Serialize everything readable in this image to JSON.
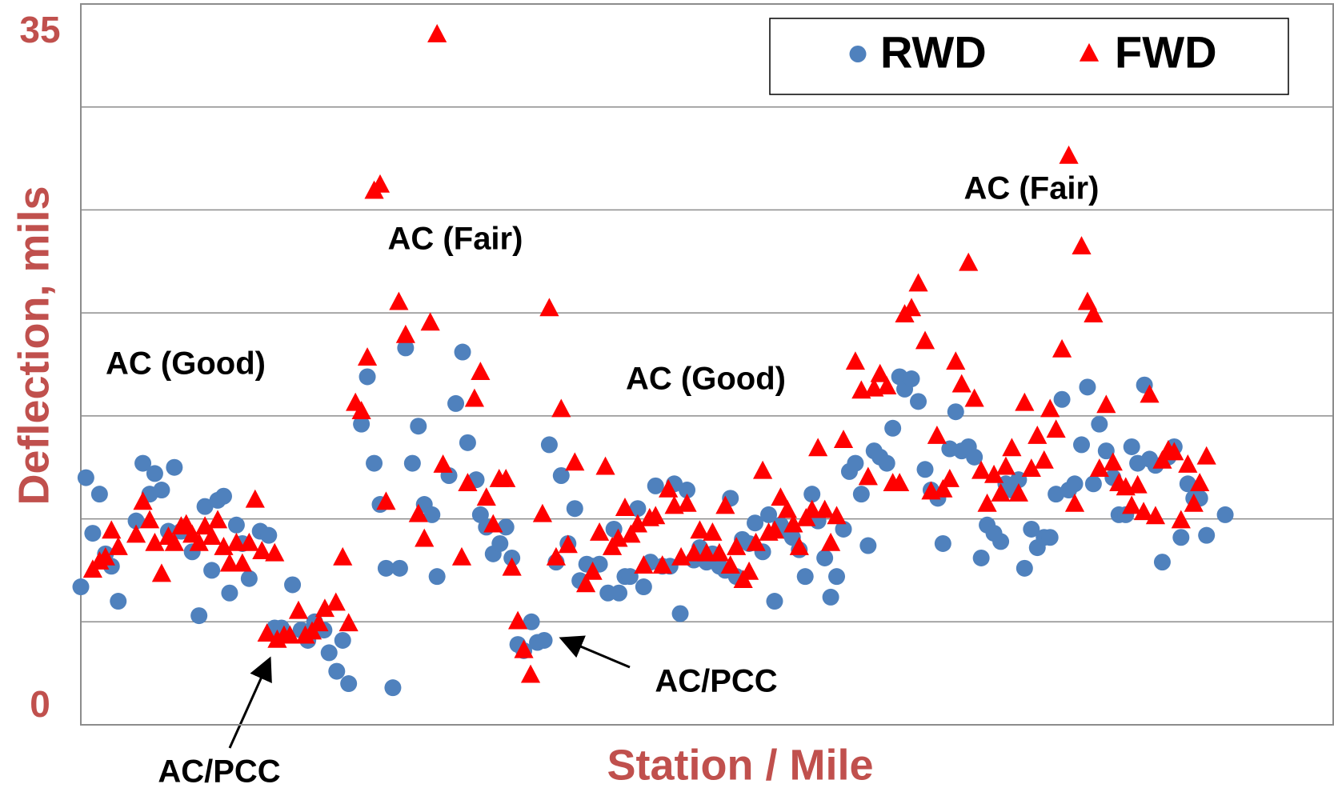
{
  "chart_data": {
    "type": "scatter",
    "x_label": "Station / Mile",
    "y_label": "Deflection, mils",
    "ylim": [
      0,
      35
    ],
    "yticks": [
      0,
      35
    ],
    "ygrid": [
      5,
      10,
      15,
      20,
      25,
      30
    ],
    "grid": true,
    "xlim": [
      0,
      147.3
    ],
    "legend": "upper right",
    "annotations": [
      "AC (Good)",
      "AC (Fair)",
      "AC (Good)",
      "AC (Fair)",
      "AC/PCC",
      "AC/PCC"
    ],
    "series": [
      {
        "name": "RWD",
        "color": "#4f81bd",
        "marker": "circle",
        "x": [
          0,
          0.6,
          1.4,
          2.2,
          2.9,
          3.6,
          4.4,
          6.5,
          7.3,
          8.1,
          8.7,
          9.5,
          10.3,
          11.0,
          11.8,
          13.1,
          13.9,
          14.6,
          15.4,
          16.1,
          16.8,
          17.5,
          18.3,
          19.0,
          19.8,
          21.1,
          22.1,
          22.8,
          23.6,
          24.9,
          25.9,
          26.7,
          27.5,
          28.6,
          29.2,
          30.1,
          30.8,
          31.5,
          33.0,
          33.7,
          34.5,
          35.2,
          35.9,
          36.7,
          37.5,
          38.2,
          39.0,
          39.7,
          40.4,
          41.3,
          41.9,
          43.3,
          44.1,
          44.9,
          45.5,
          46.5,
          47.0,
          47.7,
          48.5,
          49.3,
          50.0,
          50.7,
          51.4,
          52.1,
          53.0,
          53.7,
          54.5,
          55.1,
          55.9,
          56.5,
          57.3,
          58.1,
          58.7,
          59.5,
          60.2,
          61.0,
          62.0,
          62.7,
          63.3,
          64.0,
          64.6,
          65.5,
          66.2,
          67.0,
          67.6,
          68.4,
          69.3,
          69.8,
          70.5,
          71.3,
          72.1,
          72.8,
          73.6,
          74.3,
          75.1,
          75.8,
          76.4,
          77.1,
          77.8,
          78.6,
          79.3,
          80.2,
          80.9,
          81.6,
          82.3,
          83.1,
          83.7,
          84.5,
          85.2,
          86.0,
          86.7,
          87.5,
          88.2,
          88.9,
          89.7,
          90.4,
          91.1,
          91.8,
          92.6,
          93.3,
          94.0,
          94.8,
          95.5,
          96.3,
          96.9,
          97.7,
          98.5,
          99.3,
          100.0,
          100.8,
          101.4,
          102.2,
          102.9,
          103.6,
          104.4,
          105.1,
          105.9,
          106.6,
          107.4,
          108.2,
          108.8,
          109.5,
          110.3,
          111.0,
          111.8,
          112.5,
          113.3,
          114.0,
          114.7,
          115.4,
          116.2,
          116.9,
          117.7,
          118.4,
          119.1,
          119.8,
          120.6,
          121.4,
          122.1,
          122.9,
          123.6,
          124.3,
          125.1,
          125.7,
          126.4,
          127.2,
          127.9,
          128.6,
          129.4,
          130.2,
          130.9,
          131.6,
          132.4,
          134.6
        ],
        "values": [
          6.7,
          12.0,
          9.3,
          11.2,
          8.3,
          7.7,
          6.0,
          9.9,
          12.7,
          11.2,
          12.2,
          11.4,
          9.4,
          12.5,
          9.4,
          8.4,
          5.3,
          10.6,
          7.5,
          10.9,
          11.1,
          6.4,
          9.7,
          8.8,
          7.1,
          9.4,
          9.2,
          4.7,
          4.7,
          6.8,
          4.6,
          4.1,
          5.0,
          4.6,
          3.5,
          2.6,
          4.1,
          2.0,
          14.6,
          16.9,
          12.7,
          10.7,
          7.6,
          1.8,
          7.6,
          18.3,
          12.7,
          14.5,
          10.7,
          10.2,
          7.2,
          12.1,
          15.6,
          18.1,
          13.7,
          11.9,
          10.2,
          9.6,
          8.3,
          8.8,
          9.6,
          8.1,
          3.9,
          3.6,
          5.0,
          4.0,
          4.1,
          13.6,
          7.9,
          12.1,
          8.8,
          10.5,
          7.0,
          7.8,
          7.7,
          7.8,
          6.4,
          9.5,
          6.4,
          7.2,
          7.2,
          10.5,
          6.7,
          7.9,
          11.6,
          7.7,
          7.7,
          11.7,
          5.4,
          11.4,
          8.0,
          8.6,
          7.9,
          8.3,
          7.7,
          7.5,
          11.0,
          7.2,
          9.0,
          8.8,
          9.8,
          8.4,
          10.2,
          6.0,
          9.7,
          9.4,
          9.1,
          8.5,
          7.2,
          11.2,
          9.9,
          8.1,
          6.2,
          7.2,
          9.5,
          12.3,
          12.7,
          11.2,
          8.7,
          13.3,
          13.0,
          12.7,
          14.4,
          16.9,
          16.3,
          16.8,
          15.7,
          12.4,
          11.4,
          11.0,
          8.8,
          13.4,
          15.2,
          13.3,
          13.5,
          13.0,
          8.1,
          9.7,
          9.3,
          8.9,
          11.7,
          11.4,
          11.9,
          7.6,
          9.5,
          8.6,
          9.1,
          9.1,
          11.2,
          15.8,
          11.4,
          11.7,
          13.6,
          16.4,
          11.7,
          14.6,
          13.3,
          12.0,
          10.2,
          10.2,
          13.5,
          12.7,
          16.5,
          12.9,
          12.6,
          7.9,
          13.0,
          13.5,
          9.1,
          11.7,
          11.0,
          11.0,
          9.2,
          10.2
        ]
      },
      {
        "name": "FWD",
        "color": "#ff0000",
        "marker": "triangle",
        "x": [
          1.4,
          2.2,
          2.9,
          3.6,
          4.4,
          6.5,
          7.3,
          8.1,
          8.7,
          9.5,
          10.3,
          11.0,
          11.8,
          12.4,
          13.1,
          13.9,
          14.6,
          15.4,
          16.1,
          16.8,
          17.5,
          18.3,
          19.0,
          19.8,
          20.5,
          21.3,
          21.9,
          22.8,
          23.1,
          23.9,
          24.6,
          25.6,
          26.4,
          27.2,
          28.0,
          28.7,
          30.0,
          30.8,
          31.5,
          32.3,
          33.0,
          33.7,
          34.5,
          35.2,
          35.9,
          37.4,
          38.2,
          39.7,
          40.4,
          41.1,
          41.9,
          42.6,
          44.8,
          45.5,
          46.3,
          47.0,
          47.7,
          48.5,
          49.2,
          50.0,
          50.7,
          51.4,
          52.1,
          52.9,
          54.3,
          55.1,
          55.9,
          56.5,
          57.3,
          58.1,
          59.4,
          60.2,
          61.0,
          61.7,
          62.5,
          63.2,
          64.0,
          64.7,
          65.5,
          66.2,
          66.9,
          67.6,
          68.4,
          69.1,
          69.8,
          70.6,
          71.3,
          72.1,
          72.8,
          73.6,
          74.3,
          75.1,
          75.8,
          76.4,
          77.1,
          77.9,
          78.6,
          79.4,
          80.2,
          80.9,
          81.6,
          82.3,
          83.1,
          83.8,
          84.5,
          85.3,
          86.0,
          86.7,
          87.5,
          88.2,
          88.9,
          89.7,
          91.1,
          91.8,
          92.6,
          93.3,
          94.0,
          94.8,
          95.5,
          96.3,
          96.9,
          97.7,
          98.5,
          99.3,
          100.0,
          100.7,
          101.4,
          102.2,
          102.9,
          103.6,
          104.4,
          105.1,
          105.9,
          106.6,
          107.4,
          108.2,
          108.8,
          109.5,
          110.3,
          111.0,
          111.8,
          112.5,
          113.3,
          114.0,
          114.7,
          115.4,
          116.2,
          116.9,
          117.7,
          118.4,
          119.1,
          119.8,
          120.6,
          121.4,
          122.1,
          122.9,
          123.6,
          124.3,
          125.0,
          125.7,
          126.4,
          127.2,
          127.9,
          128.6,
          129.4,
          130.2,
          130.9,
          131.6,
          132.4
        ],
        "values": [
          7.5,
          7.9,
          8.1,
          9.4,
          8.6,
          9.2,
          10.8,
          9.9,
          8.8,
          7.3,
          9.1,
          8.8,
          9.6,
          9.7,
          9.2,
          8.8,
          9.6,
          9.1,
          9.9,
          8.6,
          7.8,
          8.8,
          7.8,
          8.8,
          10.9,
          8.4,
          4.4,
          8.3,
          4.1,
          4.3,
          4.3,
          5.5,
          4.3,
          4.5,
          4.9,
          5.6,
          5.9,
          8.1,
          4.9,
          15.6,
          15.2,
          17.8,
          25.9,
          26.2,
          10.8,
          20.5,
          18.9,
          10.2,
          9.0,
          19.5,
          33.5,
          12.6,
          8.1,
          11.7,
          15.8,
          17.1,
          11.0,
          9.7,
          11.9,
          11.9,
          7.6,
          5.0,
          3.6,
          2.4,
          10.2,
          20.2,
          8.1,
          15.3,
          8.7,
          12.7,
          6.8,
          7.4,
          9.3,
          12.5,
          8.6,
          9.0,
          10.5,
          9.2,
          9.7,
          7.7,
          10.0,
          10.1,
          7.7,
          11.4,
          10.6,
          8.1,
          10.7,
          8.3,
          9.4,
          8.3,
          9.3,
          8.3,
          10.6,
          7.7,
          8.6,
          7.0,
          7.4,
          8.8,
          12.3,
          9.3,
          9.4,
          11.0,
          10.4,
          9.7,
          8.6,
          10.0,
          10.4,
          13.4,
          10.4,
          8.8,
          10.1,
          13.8,
          17.6,
          16.2,
          12.0,
          16.3,
          17.0,
          16.4,
          11.7,
          11.7,
          19.9,
          20.2,
          21.4,
          18.6,
          11.3,
          14.0,
          11.4,
          11.9,
          17.6,
          16.5,
          22.4,
          15.8,
          12.3,
          10.7,
          12.1,
          11.2,
          12.5,
          13.4,
          11.2,
          15.6,
          12.4,
          14.0,
          12.8,
          15.3,
          14.3,
          18.2,
          27.6,
          10.7,
          23.2,
          20.5,
          19.9,
          12.4,
          15.5,
          12.7,
          11.7,
          11.5,
          10.6,
          11.6,
          10.3,
          16.0,
          10.1,
          12.8,
          13.3,
          13.2,
          9.9,
          12.6,
          10.7,
          11.7,
          13.0
        ]
      }
    ]
  }
}
